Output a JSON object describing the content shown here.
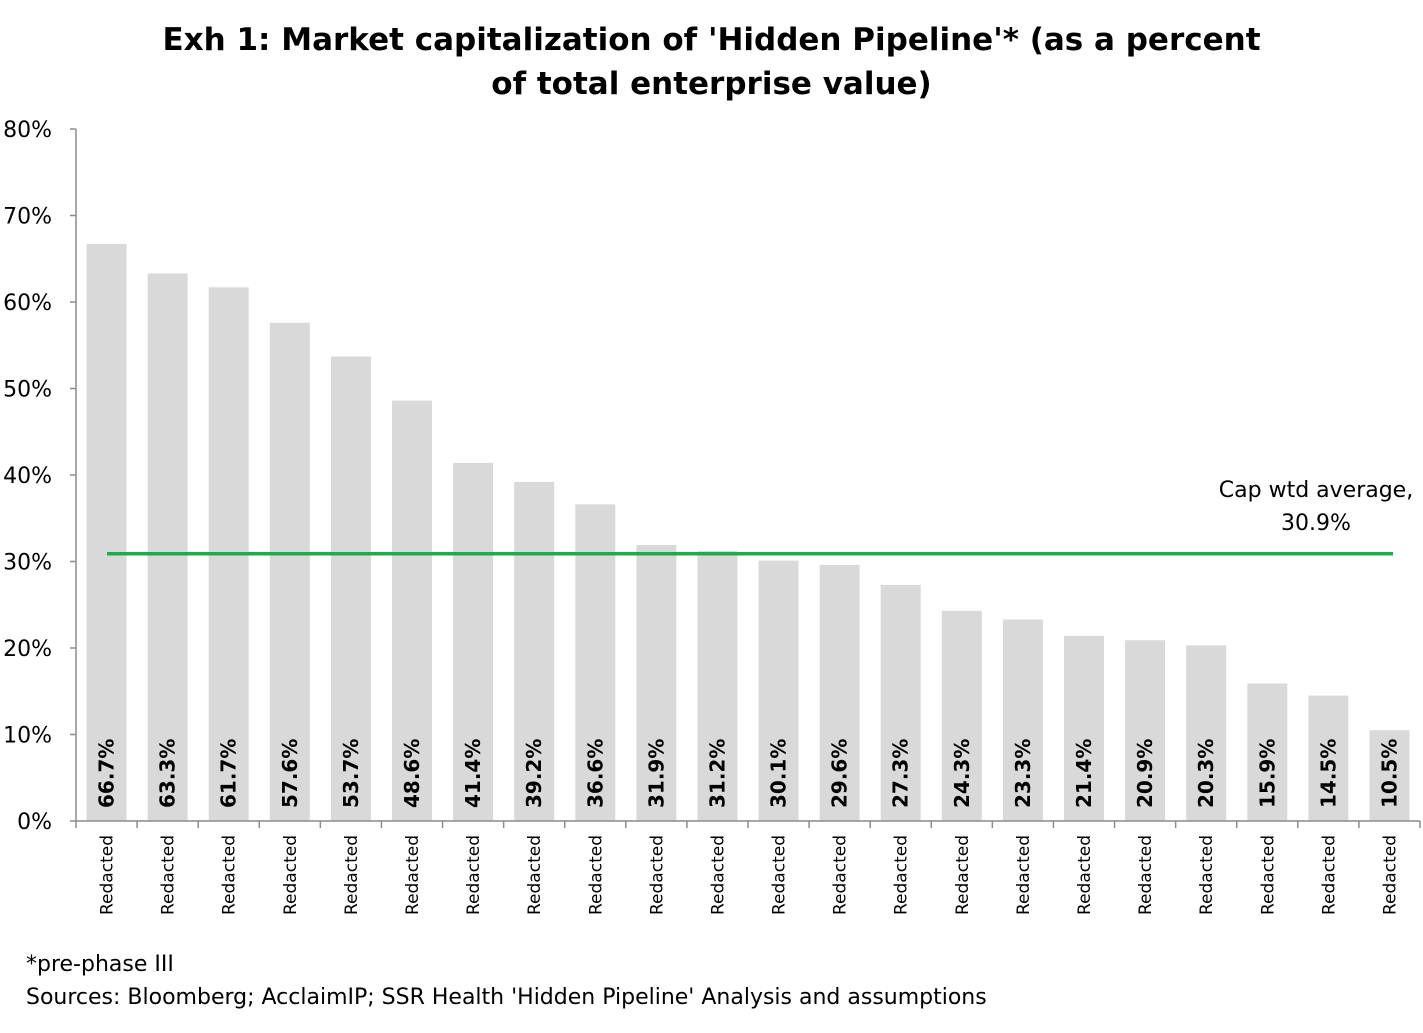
{
  "chart_data": {
    "type": "bar",
    "title_lines": [
      "Exh 1: Market capitalization of 'Hidden Pipeline'* (as a percent",
      "of total enterprise value)"
    ],
    "categories": [
      "Redacted",
      "Redacted",
      "Redacted",
      "Redacted",
      "Redacted",
      "Redacted",
      "Redacted",
      "Redacted",
      "Redacted",
      "Redacted",
      "Redacted",
      "Redacted",
      "Redacted",
      "Redacted",
      "Redacted",
      "Redacted",
      "Redacted",
      "Redacted",
      "Redacted",
      "Redacted",
      "Redacted",
      "Redacted"
    ],
    "values": [
      66.7,
      63.3,
      61.7,
      57.6,
      53.7,
      48.6,
      41.4,
      39.2,
      36.6,
      31.9,
      31.2,
      30.1,
      29.6,
      27.3,
      24.3,
      23.3,
      21.4,
      20.9,
      20.3,
      15.9,
      14.5,
      10.5
    ],
    "data_labels": [
      "66.7%",
      "63.3%",
      "61.7%",
      "57.6%",
      "53.7%",
      "48.6%",
      "41.4%",
      "39.2%",
      "36.6%",
      "31.9%",
      "31.2%",
      "30.1%",
      "29.6%",
      "27.3%",
      "24.3%",
      "23.3%",
      "21.4%",
      "20.9%",
      "20.3%",
      "15.9%",
      "14.5%",
      "10.5%"
    ],
    "ylim": [
      0,
      80
    ],
    "yticks": [
      0,
      10,
      20,
      30,
      40,
      50,
      60,
      70,
      80
    ],
    "ytick_labels": [
      "0%",
      "10%",
      "20%",
      "30%",
      "40%",
      "50%",
      "60%",
      "70%",
      "80%"
    ],
    "reference_line": {
      "value": 30.9,
      "label_lines": [
        "Cap wtd average,",
        "30.9%"
      ],
      "color": "#1aad4b"
    },
    "bar_color": "#d9d9d9",
    "grid": false,
    "legend": "none"
  },
  "footnotes": {
    "note": "*pre-phase III",
    "sources": "Sources: Bloomberg; AcclaimIP; SSR Health 'Hidden Pipeline' Analysis and assumptions"
  }
}
